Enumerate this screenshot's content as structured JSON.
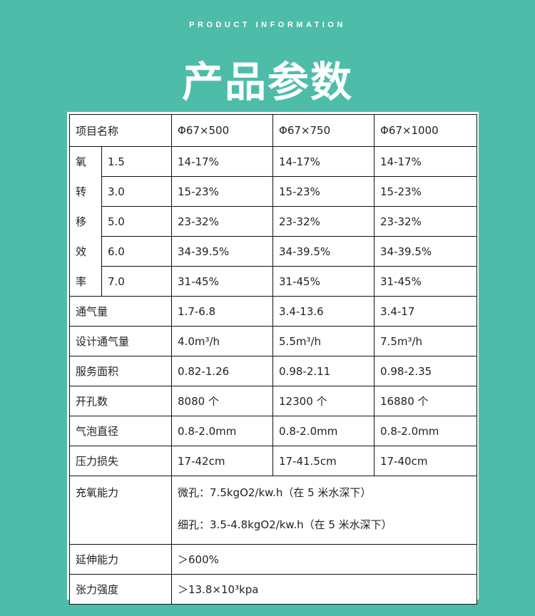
{
  "header": {
    "subtitle": "PRODUCT INFORMATION",
    "title": "产品参数"
  },
  "table": {
    "head": [
      "项目名称",
      "Φ67×500",
      "Φ67×750",
      "Φ67×1000"
    ],
    "oxygen_label": [
      "氧",
      "转",
      "移",
      "效",
      "率"
    ],
    "oxygen_rows": [
      [
        "1.5",
        "14-17%",
        "14-17%",
        "14-17%"
      ],
      [
        "3.0",
        "15-23%",
        "15-23%",
        "15-23%"
      ],
      [
        "5.0",
        "23-32%",
        "23-32%",
        "23-32%"
      ],
      [
        "6.0",
        "34-39.5%",
        "34-39.5%",
        "34-39.5%"
      ],
      [
        "7.0",
        "31-45%",
        "31-45%",
        "31-45%"
      ]
    ],
    "rows": [
      [
        "通气量",
        "1.7-6.8",
        "3.4-13.6",
        "3.4-17"
      ],
      [
        "设计通气量",
        "4.0m³/h",
        "5.5m³/h",
        "7.5m³/h"
      ],
      [
        "服务面积",
        "0.82-1.26",
        "0.98-2.11",
        "0.98-2.35"
      ],
      [
        "开孔数",
        "8080 个",
        "12300 个",
        "16880 个"
      ],
      [
        "气泡直径",
        "0.8-2.0mm",
        "0.8-2.0mm",
        "0.8-2.0mm"
      ],
      [
        "压力损失",
        "17-42cm",
        "17-41.5cm",
        "17-40cm"
      ]
    ],
    "capacity": {
      "label": "充氧能力",
      "line1": "微孔：7.5kgO2/kw.h（在 5 米水深下）",
      "line2": "细孔：3.5-4.8kgO2/kw.h（在 5 米水深下）"
    },
    "elongation": {
      "label": "延伸能力",
      "value": "＞600%"
    },
    "tension": {
      "label": "张力强度",
      "value": "＞13.8×10³kpa"
    }
  }
}
